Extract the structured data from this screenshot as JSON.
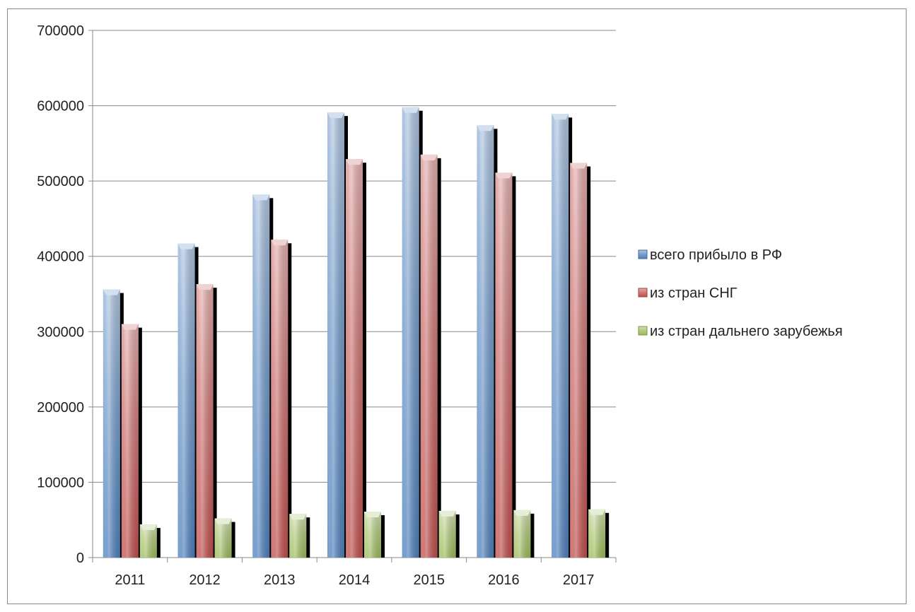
{
  "chart_data": {
    "type": "bar",
    "categories": [
      "2011",
      "2012",
      "2013",
      "2014",
      "2015",
      "2016",
      "2017"
    ],
    "series": [
      {
        "name": "всего прибыло в РФ",
        "color": "#4f81bd",
        "values": [
          356000,
          417000,
          482000,
          591000,
          598000,
          574000,
          589000
        ]
      },
      {
        "name": "из стран СНГ",
        "color": "#c0504d",
        "values": [
          310000,
          363000,
          422000,
          529000,
          535000,
          511000,
          524000
        ]
      },
      {
        "name": "из стран дальнего зарубежья",
        "color": "#9bbb59",
        "values": [
          44000,
          52000,
          58000,
          61000,
          62000,
          63000,
          64000
        ]
      }
    ],
    "yticks": [
      "0",
      "100000",
      "200000",
      "300000",
      "400000",
      "500000",
      "600000",
      "700000"
    ],
    "ylim": [
      0,
      700000
    ],
    "ytick_step": 100000,
    "title": "",
    "xlabel": "",
    "ylabel": "",
    "grid": true,
    "legend_position": "right"
  }
}
